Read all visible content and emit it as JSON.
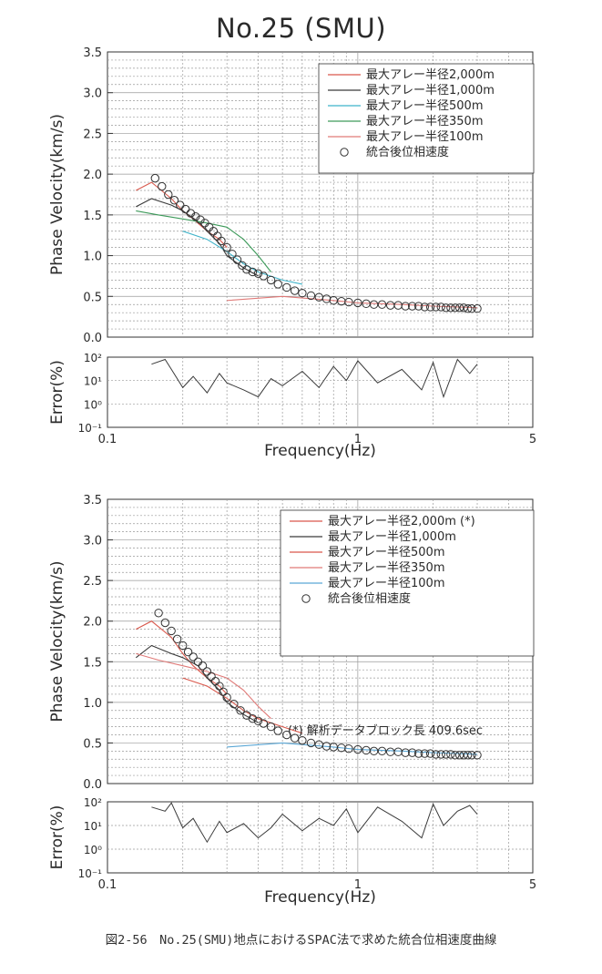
{
  "title": "No.25 (SMU)",
  "caption": "図2-56　No.25(SMU)地点におけるSPAC法で求めた統合位相速度曲線",
  "colors": {
    "red": "#d9584c",
    "black": "#3a3a3a",
    "cyan": "#3fb3c9",
    "green": "#3d9a5a",
    "pink": "#e07a78",
    "blue": "#5aa7d6",
    "markerEdge": "#333333"
  },
  "chart_data": [
    {
      "type": "line",
      "xlabel": "Frequency(Hz)",
      "ylabel": "Phase Velocity(km/s)",
      "ylim": [
        0.0,
        3.5
      ],
      "yticks": [
        "0.0",
        "0.5",
        "1.0",
        "1.5",
        "2.0",
        "2.5",
        "3.0",
        "3.5"
      ],
      "xscale": "log",
      "xlim": [
        0.1,
        5
      ],
      "xticks": [
        "0.1",
        "1",
        "5"
      ],
      "grid": true,
      "legend_position": "top-right",
      "legend": [
        "最大アレー半径2,000m",
        "最大アレー半径1,000m",
        "最大アレー半径500m",
        "最大アレー半径350m",
        "最大アレー半径100m",
        "統合後位相速度"
      ],
      "series": [
        {
          "name": "最大アレー半径2,000m",
          "color": "red",
          "x": [
            0.13,
            0.15,
            0.18,
            0.2,
            0.22,
            0.25,
            0.28,
            0.3
          ],
          "y": [
            1.8,
            1.9,
            1.7,
            1.55,
            1.45,
            1.3,
            1.2,
            1.1
          ]
        },
        {
          "name": "最大アレー半径1,000m",
          "color": "black",
          "x": [
            0.13,
            0.15,
            0.18,
            0.2,
            0.23,
            0.25,
            0.28,
            0.3,
            0.35,
            0.4
          ],
          "y": [
            1.6,
            1.7,
            1.62,
            1.55,
            1.42,
            1.3,
            1.15,
            1.0,
            0.85,
            0.75
          ]
        },
        {
          "name": "最大アレー半径500m",
          "color": "cyan",
          "x": [
            0.2,
            0.25,
            0.3,
            0.35,
            0.4,
            0.5,
            0.6
          ],
          "y": [
            1.3,
            1.2,
            1.05,
            0.9,
            0.8,
            0.7,
            0.65
          ]
        },
        {
          "name": "最大アレー半径350m",
          "color": "green",
          "x": [
            0.13,
            0.16,
            0.2,
            0.25,
            0.3,
            0.35,
            0.4,
            0.45
          ],
          "y": [
            1.55,
            1.5,
            1.45,
            1.4,
            1.35,
            1.2,
            1.0,
            0.8
          ]
        },
        {
          "name": "最大アレー半径100m",
          "color": "pink",
          "x": [
            0.3,
            0.5,
            0.8,
            1,
            1.5,
            2,
            2.5,
            3
          ],
          "y": [
            0.45,
            0.5,
            0.45,
            0.42,
            0.4,
            0.38,
            0.37,
            0.36
          ]
        },
        {
          "name": "統合後位相速度",
          "color": "markerEdge",
          "marker": "circle",
          "x": [
            0.155,
            0.165,
            0.175,
            0.185,
            0.195,
            0.205,
            0.215,
            0.225,
            0.235,
            0.245,
            0.255,
            0.265,
            0.275,
            0.285,
            0.3,
            0.315,
            0.33,
            0.345,
            0.36,
            0.38,
            0.4,
            0.42,
            0.45,
            0.48,
            0.52,
            0.56,
            0.6,
            0.65,
            0.7,
            0.75,
            0.8,
            0.86,
            0.92,
            1.0,
            1.08,
            1.16,
            1.25,
            1.35,
            1.45,
            1.55,
            1.65,
            1.75,
            1.85,
            1.95,
            2.05,
            2.15,
            2.25,
            2.35,
            2.45,
            2.55,
            2.65,
            2.75,
            2.85,
            3.0
          ],
          "y": [
            1.95,
            1.85,
            1.75,
            1.68,
            1.62,
            1.57,
            1.52,
            1.48,
            1.44,
            1.4,
            1.35,
            1.3,
            1.24,
            1.18,
            1.1,
            1.02,
            0.95,
            0.88,
            0.83,
            0.8,
            0.78,
            0.75,
            0.7,
            0.65,
            0.61,
            0.57,
            0.54,
            0.51,
            0.49,
            0.47,
            0.45,
            0.44,
            0.43,
            0.42,
            0.41,
            0.4,
            0.4,
            0.39,
            0.39,
            0.38,
            0.38,
            0.38,
            0.37,
            0.37,
            0.37,
            0.37,
            0.36,
            0.36,
            0.36,
            0.36,
            0.36,
            0.35,
            0.35,
            0.35
          ]
        }
      ]
    },
    {
      "type": "line",
      "ylabel": "Error(%)",
      "yscale": "log",
      "ylim": [
        0.1,
        100
      ],
      "yticks": [
        "10⁻¹",
        "10⁰",
        "10¹",
        "10²"
      ],
      "xscale": "log",
      "xlim": [
        0.1,
        5
      ],
      "xlabel": "Frequency(Hz)",
      "xticks": [
        "0.1",
        "1",
        "5"
      ],
      "series": [
        {
          "name": "",
          "color": "black",
          "x": [
            0.15,
            0.17,
            0.18,
            0.2,
            0.22,
            0.25,
            0.28,
            0.3,
            0.35,
            0.4,
            0.45,
            0.5,
            0.6,
            0.7,
            0.8,
            0.9,
            1,
            1.2,
            1.5,
            1.8,
            2,
            2.2,
            2.5,
            2.8,
            3
          ],
          "y": [
            50,
            80,
            30,
            5,
            15,
            3,
            20,
            8,
            4,
            2,
            12,
            6,
            25,
            5,
            40,
            10,
            70,
            8,
            30,
            4,
            60,
            2,
            80,
            20,
            50
          ]
        }
      ]
    },
    {
      "type": "line",
      "xlabel": "Frequency(Hz)",
      "ylabel": "Phase Velocity(km/s)",
      "ylim": [
        0.0,
        3.5
      ],
      "yticks": [
        "0.0",
        "0.5",
        "1.0",
        "1.5",
        "2.0",
        "2.5",
        "3.0",
        "3.5"
      ],
      "xscale": "log",
      "xlim": [
        0.1,
        5
      ],
      "xticks": [
        "0.1",
        "1",
        "5"
      ],
      "grid": true,
      "legend_position": "top-right",
      "legend": [
        "最大アレー半径2,000m (*)",
        "最大アレー半径1,000m",
        "最大アレー半径500m",
        "最大アレー半径350m",
        "最大アレー半径100m",
        "統合後位相速度"
      ],
      "annotation": "(*) 解析データブロック長 409.6sec",
      "series": [
        {
          "name": "最大アレー半径2,000m (*)",
          "color": "red",
          "x": [
            0.13,
            0.15,
            0.18,
            0.2,
            0.22,
            0.25,
            0.28,
            0.3
          ],
          "y": [
            1.9,
            2.0,
            1.8,
            1.6,
            1.45,
            1.3,
            1.2,
            1.1
          ]
        },
        {
          "name": "最大アレー半径1,000m",
          "color": "black",
          "x": [
            0.13,
            0.15,
            0.18,
            0.2,
            0.23,
            0.25,
            0.28,
            0.3,
            0.35,
            0.4
          ],
          "y": [
            1.55,
            1.7,
            1.6,
            1.55,
            1.45,
            1.3,
            1.15,
            1.0,
            0.85,
            0.75
          ]
        },
        {
          "name": "最大アレー半径500m",
          "color": "red",
          "x": [
            0.2,
            0.25,
            0.3,
            0.35,
            0.4,
            0.5,
            0.6
          ],
          "y": [
            1.3,
            1.2,
            1.05,
            0.9,
            0.8,
            0.7,
            0.62
          ]
        },
        {
          "name": "最大アレー半径350m",
          "color": "pink",
          "x": [
            0.13,
            0.16,
            0.2,
            0.25,
            0.3,
            0.35,
            0.4,
            0.45
          ],
          "y": [
            1.6,
            1.52,
            1.45,
            1.38,
            1.3,
            1.15,
            0.95,
            0.8
          ]
        },
        {
          "name": "最大アレー半径100m",
          "color": "blue",
          "x": [
            0.3,
            0.5,
            0.8,
            1,
            1.5,
            2,
            2.5,
            3
          ],
          "y": [
            0.45,
            0.5,
            0.45,
            0.42,
            0.4,
            0.38,
            0.37,
            0.36
          ]
        },
        {
          "name": "統合後位相速度",
          "color": "markerEdge",
          "marker": "circle",
          "x": [
            0.16,
            0.17,
            0.18,
            0.19,
            0.2,
            0.21,
            0.22,
            0.23,
            0.24,
            0.25,
            0.26,
            0.27,
            0.28,
            0.29,
            0.3,
            0.32,
            0.34,
            0.36,
            0.38,
            0.4,
            0.42,
            0.45,
            0.48,
            0.52,
            0.56,
            0.6,
            0.65,
            0.7,
            0.75,
            0.8,
            0.86,
            0.92,
            1.0,
            1.08,
            1.16,
            1.25,
            1.35,
            1.45,
            1.55,
            1.65,
            1.75,
            1.85,
            1.95,
            2.05,
            2.15,
            2.25,
            2.35,
            2.45,
            2.55,
            2.65,
            2.75,
            2.85,
            3.0
          ],
          "y": [
            2.1,
            1.98,
            1.88,
            1.78,
            1.7,
            1.62,
            1.56,
            1.5,
            1.45,
            1.38,
            1.32,
            1.26,
            1.2,
            1.13,
            1.06,
            0.98,
            0.9,
            0.84,
            0.8,
            0.77,
            0.74,
            0.7,
            0.65,
            0.6,
            0.56,
            0.53,
            0.5,
            0.48,
            0.46,
            0.45,
            0.44,
            0.43,
            0.42,
            0.41,
            0.4,
            0.4,
            0.39,
            0.39,
            0.38,
            0.38,
            0.37,
            0.37,
            0.37,
            0.36,
            0.36,
            0.36,
            0.36,
            0.35,
            0.35,
            0.35,
            0.35,
            0.35,
            0.35
          ]
        }
      ]
    },
    {
      "type": "line",
      "ylabel": "Error(%)",
      "yscale": "log",
      "ylim": [
        0.1,
        100
      ],
      "yticks": [
        "10⁻¹",
        "10⁰",
        "10¹",
        "10²"
      ],
      "xscale": "log",
      "xlim": [
        0.1,
        5
      ],
      "xlabel": "Frequency(Hz)",
      "xticks": [
        "0.1",
        "1",
        "5"
      ],
      "series": [
        {
          "name": "",
          "color": "black",
          "x": [
            0.15,
            0.17,
            0.18,
            0.2,
            0.22,
            0.25,
            0.28,
            0.3,
            0.35,
            0.4,
            0.45,
            0.5,
            0.6,
            0.7,
            0.8,
            0.9,
            1,
            1.2,
            1.5,
            1.8,
            2,
            2.2,
            2.5,
            2.8,
            3
          ],
          "y": [
            60,
            40,
            90,
            8,
            20,
            2,
            15,
            5,
            12,
            3,
            8,
            30,
            6,
            20,
            10,
            50,
            5,
            60,
            15,
            3,
            80,
            10,
            40,
            70,
            30
          ]
        }
      ]
    }
  ]
}
